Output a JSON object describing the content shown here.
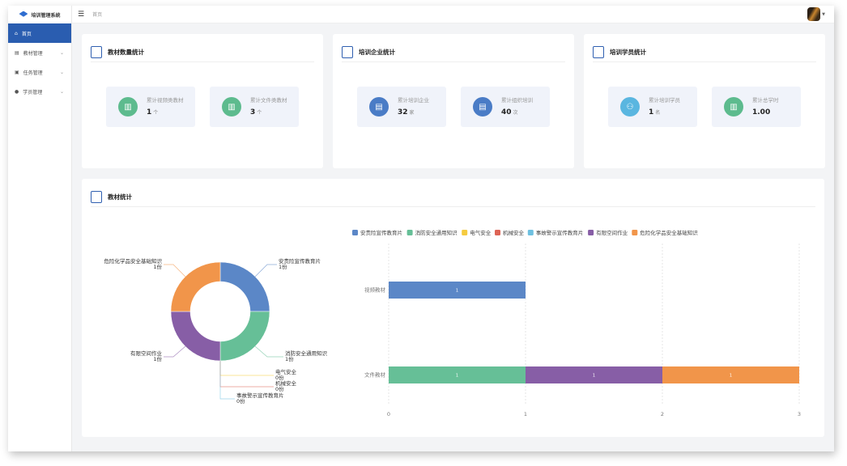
{
  "app": {
    "title": "培训管理系统"
  },
  "sidebar": {
    "items": [
      {
        "label": "首页",
        "icon": "home-icon",
        "active": true
      },
      {
        "label": "教材管理",
        "icon": "book-icon"
      },
      {
        "label": "任务管理",
        "icon": "task-icon"
      },
      {
        "label": "学员管理",
        "icon": "user-icon"
      }
    ]
  },
  "header": {
    "breadcrumb": "首页",
    "menu_icon": "menu-fold-icon"
  },
  "cards": [
    {
      "title": "教材数量统计",
      "stats": [
        {
          "label": "累计视频类教材",
          "value": "1",
          "unit": "个",
          "color": "#5dbb8e",
          "icon": "books-icon"
        },
        {
          "label": "累计文件类教材",
          "value": "3",
          "unit": "个",
          "color": "#5dbb8e",
          "icon": "books-icon"
        }
      ]
    },
    {
      "title": "培训企业统计",
      "stats": [
        {
          "label": "累计培训企业",
          "value": "32",
          "unit": "家",
          "color": "#4a7cc6",
          "icon": "trainee-doc-icon"
        },
        {
          "label": "累计组织培训",
          "value": "40",
          "unit": "次",
          "color": "#4a7cc6",
          "icon": "trainee-doc-icon"
        }
      ]
    },
    {
      "title": "培训学员统计",
      "stats": [
        {
          "label": "累计培训学员",
          "value": "1",
          "unit": "名",
          "color": "#5ab6e0",
          "icon": "users-icon"
        },
        {
          "label": "累计总学时",
          "value": "1.00",
          "unit": "",
          "color": "#5dbb8e",
          "icon": "books-icon"
        }
      ]
    }
  ],
  "chart_section": {
    "title": "教材统计"
  },
  "chart_data": [
    {
      "type": "pie",
      "donut": true,
      "slices": [
        {
          "name": "安责险宣传教育片",
          "value": 1,
          "label": "1份",
          "color": "#5b87c7"
        },
        {
          "name": "消防安全通用知识",
          "value": 1,
          "label": "1份",
          "color": "#66bf97"
        },
        {
          "name": "电气安全",
          "value": 0,
          "label": "0份",
          "color": "#f5cb3f"
        },
        {
          "name": "机械安全",
          "value": 0,
          "label": "0份",
          "color": "#dd6455"
        },
        {
          "name": "事故警示宣传教育片",
          "value": 0,
          "label": "0份",
          "color": "#6ec0e0"
        },
        {
          "name": "有限空间作业",
          "value": 1,
          "label": "1份",
          "color": "#875ea6"
        },
        {
          "name": "危险化学品安全基础知识",
          "value": 1,
          "label": "1份",
          "color": "#f1954a"
        }
      ]
    },
    {
      "type": "bar",
      "orientation": "horizontal",
      "stacked": true,
      "legend": "top",
      "grid": true,
      "categories": [
        "视频教材",
        "文件教材"
      ],
      "xlim": [
        0,
        3
      ],
      "xticks": [
        "0",
        "1",
        "2",
        "3"
      ],
      "series": [
        {
          "name": "安责险宣传教育片",
          "values": [
            1,
            0
          ],
          "color": "#5b87c7"
        },
        {
          "name": "消防安全通用知识",
          "values": [
            0,
            1
          ],
          "color": "#66bf97"
        },
        {
          "name": "电气安全",
          "values": [
            0,
            0
          ],
          "color": "#f5cb3f"
        },
        {
          "name": "机械安全",
          "values": [
            0,
            0
          ],
          "color": "#dd6455"
        },
        {
          "name": "事故警示宣传教育片",
          "values": [
            0,
            0
          ],
          "color": "#6ec0e0"
        },
        {
          "name": "有限空间作业",
          "values": [
            0,
            1
          ],
          "color": "#875ea6"
        },
        {
          "name": "危险化学品安全基础知识",
          "values": [
            0,
            1
          ],
          "color": "#f1954a"
        }
      ]
    }
  ]
}
